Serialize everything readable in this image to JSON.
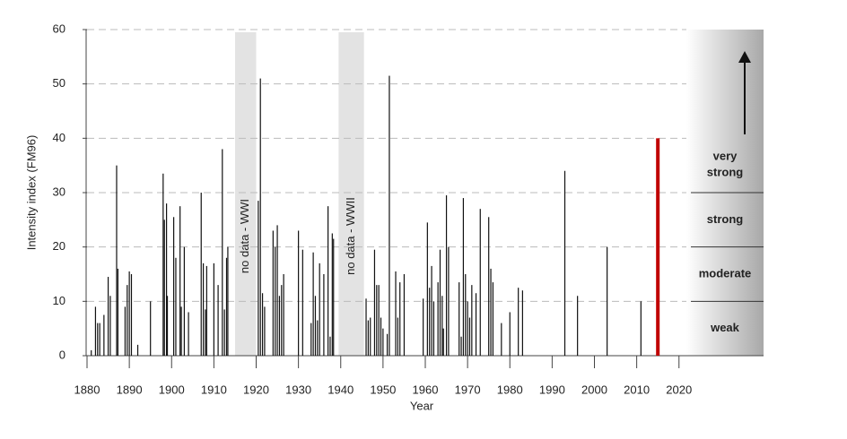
{
  "chart_data": {
    "type": "bar",
    "xlabel": "Year",
    "ylabel": "Intensity index  (FM96)",
    "xlim": [
      1880,
      2040
    ],
    "ylim": [
      0,
      60
    ],
    "xticks": [
      1880,
      1890,
      1900,
      1910,
      1920,
      1930,
      1940,
      1950,
      1960,
      1970,
      1980,
      1990,
      2000,
      2010,
      2020
    ],
    "yticks": [
      0,
      10,
      20,
      30,
      40,
      50,
      60
    ],
    "grid": true,
    "series": [
      {
        "color": "#111111",
        "x": [
          1881,
          1882,
          1882.5,
          1883,
          1884,
          1885,
          1885.5,
          1887,
          1887.3,
          1889,
          1889.5,
          1890,
          1890.5,
          1892,
          1895,
          1898,
          1898.3,
          1898.8,
          1899,
          1900.5,
          1901,
          1902,
          1902.3,
          1903,
          1904,
          1907,
          1907.5,
          1908,
          1908.3,
          1910,
          1911,
          1912,
          1912.5,
          1913,
          1913.3,
          1920.5,
          1921,
          1921.5,
          1922,
          1924,
          1924.5,
          1925,
          1925.5,
          1926,
          1926.5,
          1930,
          1931,
          1933,
          1933.5,
          1934,
          1934.5,
          1935,
          1936,
          1937,
          1937.5,
          1938,
          1938.3,
          1946,
          1946.5,
          1947,
          1948,
          1948.5,
          1949,
          1949.5,
          1950,
          1951,
          1951.5,
          1953,
          1953.5,
          1954,
          1955,
          1959.5,
          1960.5,
          1961,
          1961.5,
          1962,
          1963,
          1963.5,
          1964,
          1964.3,
          1965,
          1965.5,
          1968,
          1968.5,
          1969,
          1969.5,
          1970,
          1970.5,
          1971,
          1972,
          1973,
          1975,
          1975.5,
          1976,
          1978,
          1980,
          1982,
          1983,
          1993,
          1996,
          2003,
          2011
        ],
        "values": [
          1,
          9,
          6,
          6,
          7.5,
          14.5,
          11,
          35,
          16,
          9,
          13,
          15.5,
          15,
          2,
          10,
          33.5,
          25,
          28,
          11,
          25.5,
          18,
          27.5,
          9,
          20,
          8,
          30,
          17,
          8.5,
          16.5,
          17,
          13,
          38,
          8.5,
          18,
          20,
          28.5,
          51,
          11.5,
          9,
          23,
          20,
          24,
          11,
          13,
          15,
          23,
          19.5,
          6,
          19,
          11,
          6.5,
          17,
          15,
          27.5,
          3.5,
          22.5,
          21.5,
          10.5,
          6.5,
          7,
          19.5,
          13,
          13,
          7,
          5,
          4,
          51.5,
          15.5,
          7,
          13.5,
          15,
          10.5,
          24.5,
          12.5,
          16.5,
          10,
          13.5,
          19.5,
          11,
          5,
          29.5,
          20,
          13.5,
          3.5,
          29,
          15,
          10,
          7,
          13,
          11.5,
          27,
          25.5,
          16,
          13.5,
          6,
          8,
          12.5,
          12,
          34,
          11,
          20,
          10
        ]
      },
      {
        "color": "#c00000",
        "x": [
          2015
        ],
        "values": [
          40
        ]
      }
    ],
    "shaded": [
      {
        "from": 1915,
        "to": 1920,
        "label": "no data - WWI"
      },
      {
        "from": 1939.5,
        "to": 1945.5,
        "label": "no data - WWII"
      }
    ],
    "classes": [
      {
        "label": "weak",
        "from": 0,
        "to": 10
      },
      {
        "label": "moderate",
        "from": 10,
        "to": 20
      },
      {
        "label": "strong",
        "from": 20,
        "to": 30
      },
      {
        "label": "very strong",
        "from": 30,
        "to": 40
      }
    ]
  }
}
